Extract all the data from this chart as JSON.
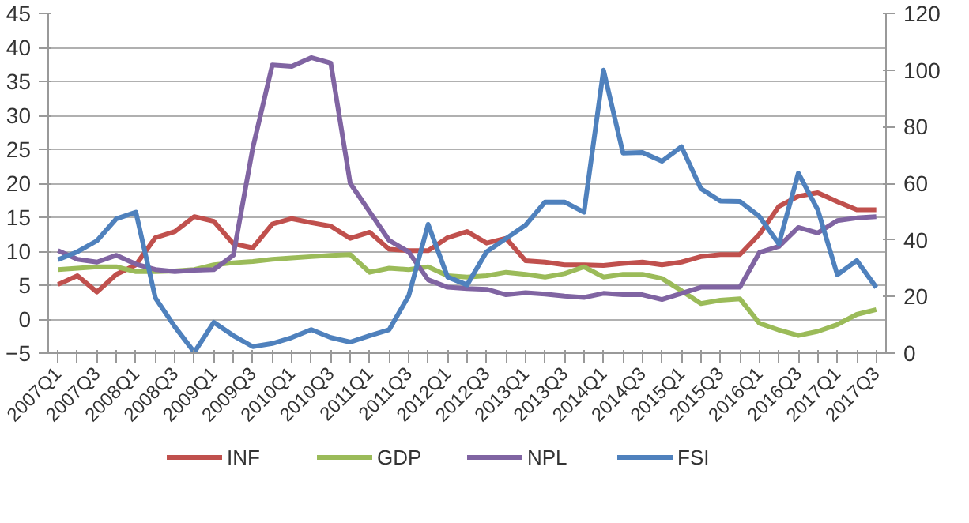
{
  "chart_data": {
    "type": "line",
    "categories": [
      "2007Q1",
      null,
      "2007Q3",
      null,
      "2008Q1",
      null,
      "2008Q3",
      null,
      "2009Q1",
      null,
      "2009Q3",
      null,
      "2010Q1",
      null,
      "2010Q3",
      null,
      "2011Q1",
      null,
      "2011Q3",
      null,
      "2012Q1",
      null,
      "2012Q3",
      null,
      "2013Q1",
      null,
      "2013Q3",
      null,
      "2014Q1",
      null,
      "2014Q3",
      null,
      "2015Q1",
      null,
      "2015Q3",
      null,
      "2016Q1",
      null,
      "2016Q3",
      null,
      "2017Q1",
      null,
      "2017Q3"
    ],
    "series": [
      {
        "name": "INF",
        "color": "#c0504d",
        "values": [
          5.1,
          6.4,
          4.0,
          6.6,
          8.0,
          12.0,
          12.9,
          15.1,
          14.4,
          11.1,
          10.5,
          14.0,
          14.8,
          14.2,
          13.7,
          11.9,
          12.8,
          10.3,
          10.1,
          10.1,
          12.0,
          12.9,
          11.2,
          11.9,
          8.6,
          8.4,
          8.0,
          8.0,
          7.9,
          8.2,
          8.4,
          8.0,
          8.4,
          9.2,
          9.5,
          9.5,
          12.5,
          16.6,
          18.1,
          18.6,
          17.3,
          16.1,
          16.1
        ]
      },
      {
        "name": "GDP",
        "color": "#9bbb59",
        "values": [
          7.3,
          7.5,
          7.7,
          7.7,
          7.0,
          7.0,
          7.1,
          7.3,
          8.0,
          8.3,
          8.5,
          8.8,
          9.0,
          9.2,
          9.4,
          9.5,
          6.9,
          7.5,
          7.3,
          7.7,
          6.4,
          6.2,
          6.4,
          6.9,
          6.6,
          6.2,
          6.7,
          7.7,
          6.2,
          6.6,
          6.6,
          6.0,
          4.2,
          2.3,
          2.8,
          3.0,
          -0.6,
          -1.6,
          -2.4,
          -1.8,
          -0.8,
          0.7,
          1.4
        ]
      },
      {
        "name": "NPL",
        "color": "#8064a2",
        "values": [
          10.1,
          8.8,
          8.4,
          9.4,
          8.1,
          7.3,
          7.0,
          7.2,
          7.3,
          9.4,
          25.2,
          37.4,
          37.2,
          38.5,
          37.7,
          20.0,
          15.8,
          11.6,
          9.9,
          5.8,
          4.7,
          4.5,
          4.4,
          3.6,
          3.9,
          3.7,
          3.4,
          3.2,
          3.8,
          3.6,
          3.6,
          2.9,
          3.8,
          4.7,
          4.7,
          4.7,
          9.8,
          10.7,
          13.5,
          12.7,
          14.5,
          14.9,
          15.1
        ]
      },
      {
        "name": "FSI",
        "color": "#4f81bd",
        "axis": "y2",
        "values": [
          33.0,
          35.8,
          39.7,
          47.5,
          49.8,
          19.5,
          9.3,
          0.3,
          10.9,
          6.2,
          2.3,
          3.4,
          5.5,
          8.3,
          5.5,
          3.9,
          6.2,
          8.3,
          20.2,
          45.5,
          26.9,
          24.1,
          35.8,
          40.5,
          45.2,
          53.4,
          53.4,
          49.8,
          100.0,
          70.7,
          70.9,
          67.8,
          72.9,
          58.1,
          53.7,
          53.6,
          48.3,
          38.6,
          63.6,
          50.6,
          27.7,
          32.7,
          23.2
        ]
      }
    ],
    "ylim": [
      -5,
      45
    ],
    "yticks": [
      -5,
      0,
      5,
      10,
      15,
      20,
      25,
      30,
      35,
      40,
      45
    ],
    "y2lim": [
      0,
      120
    ],
    "y2ticks": [
      0,
      20,
      40,
      60,
      80,
      100,
      120
    ],
    "grid": "y",
    "legend": "bottom",
    "marker": "none",
    "line_style": "solid"
  }
}
